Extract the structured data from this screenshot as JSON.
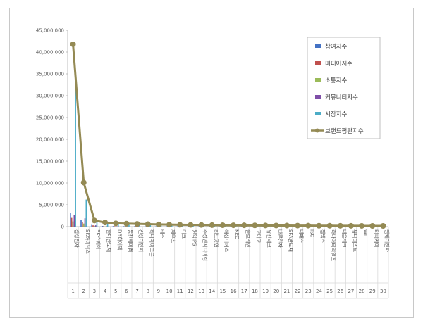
{
  "chart_data": {
    "type": "bar",
    "ylim": [
      0,
      45000000
    ],
    "y_ticks": [
      "0",
      "5,000,000",
      "10,000,000",
      "15,000,000",
      "20,000,000",
      "25,000,000",
      "30,000,000",
      "35,000,000",
      "40,000,000",
      "45,000,000"
    ],
    "categories": [
      "삼성전자",
      "SK하이닉스",
      "SK스퀘어",
      "한미반도체",
      "DB하이텍",
      "동진쎄미켐",
      "신성이엔지",
      "하나마이크론",
      "테스",
      "제우스",
      "미코",
      "원익IPS",
      "주성엔지니어링",
      "리노공업",
      "해성디에스",
      "KEC",
      "솔브레인",
      "코미코",
      "유진테크",
      "바른전자",
      "SFA반도체",
      "네패스",
      "ISC",
      "젬백스",
      "하나머티리얼즈",
      "네온테크",
      "유니테스트",
      "WI",
      "티씨케이",
      "엠케이전자"
    ],
    "numbers": [
      "1",
      "2",
      "3",
      "4",
      "5",
      "6",
      "7",
      "8",
      "9",
      "10",
      "11",
      "12",
      "13",
      "14",
      "15",
      "16",
      "17",
      "18",
      "19",
      "20",
      "21",
      "22",
      "23",
      "24",
      "25",
      "26",
      "27",
      "28",
      "29",
      "30"
    ],
    "series": [
      {
        "name": "참여지수",
        "color": "#4472c4",
        "values": [
          3100000,
          1600000,
          400000,
          150000,
          120000,
          100000,
          90000,
          80000,
          70000,
          70000,
          60000,
          60000,
          60000,
          50000,
          50000,
          50000,
          50000,
          40000,
          40000,
          40000,
          40000,
          40000,
          40000,
          30000,
          30000,
          30000,
          30000,
          30000,
          30000,
          30000
        ]
      },
      {
        "name": "미디어지수",
        "color": "#c0504d",
        "values": [
          2000000,
          1100000,
          300000,
          120000,
          100000,
          80000,
          70000,
          60000,
          60000,
          50000,
          50000,
          50000,
          50000,
          40000,
          40000,
          40000,
          40000,
          30000,
          30000,
          30000,
          30000,
          30000,
          30000,
          30000,
          30000,
          30000,
          20000,
          20000,
          20000,
          20000
        ]
      },
      {
        "name": "소통지수",
        "color": "#9bbb59",
        "values": [
          1200000,
          700000,
          150000,
          60000,
          50000,
          40000,
          40000,
          30000,
          30000,
          30000,
          30000,
          30000,
          30000,
          20000,
          20000,
          20000,
          20000,
          20000,
          20000,
          20000,
          20000,
          20000,
          20000,
          20000,
          20000,
          20000,
          20000,
          20000,
          20000,
          20000
        ]
      },
      {
        "name": "커뮤니티지수",
        "color": "#7f4fa8",
        "values": [
          2600000,
          1900000,
          300000,
          100000,
          80000,
          70000,
          60000,
          50000,
          50000,
          40000,
          40000,
          40000,
          40000,
          30000,
          30000,
          30000,
          30000,
          30000,
          30000,
          30000,
          30000,
          30000,
          30000,
          20000,
          20000,
          20000,
          20000,
          20000,
          20000,
          20000
        ]
      },
      {
        "name": "시장지수",
        "color": "#4bacc6",
        "values": [
          32500000,
          6200000,
          1200000,
          700000,
          500000,
          450000,
          380000,
          350000,
          300000,
          280000,
          260000,
          250000,
          230000,
          210000,
          200000,
          190000,
          180000,
          170000,
          160000,
          150000,
          150000,
          140000,
          130000,
          120000,
          120000,
          110000,
          110000,
          100000,
          100000,
          100000
        ]
      }
    ],
    "line_series": {
      "name": "브랜드평판지수",
      "color": "#948a54",
      "values": [
        41800000,
        10100000,
        1400000,
        950000,
        750000,
        690000,
        620000,
        560000,
        500000,
        460000,
        420000,
        400000,
        380000,
        340000,
        320000,
        310000,
        300000,
        280000,
        260000,
        250000,
        240000,
        230000,
        220000,
        200000,
        200000,
        190000,
        180000,
        170000,
        160000,
        160000
      ]
    },
    "legend_position": "top-right",
    "grid": false
  }
}
